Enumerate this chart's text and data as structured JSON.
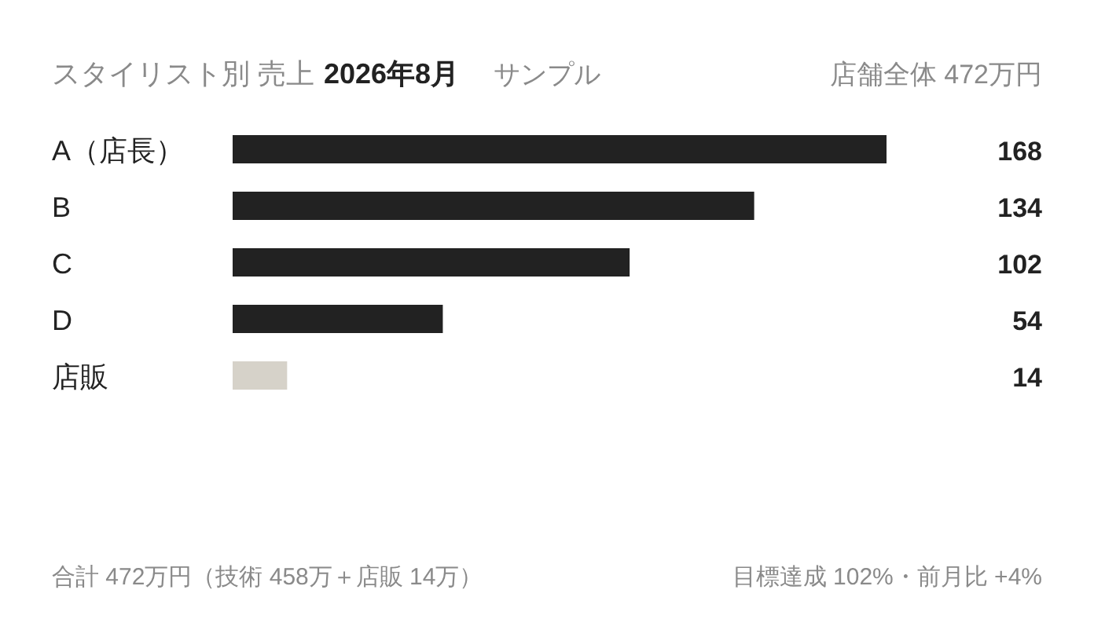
{
  "chart_data": {
    "type": "bar",
    "orientation": "horizontal",
    "title": "スタイリスト別 売上",
    "subtitle": "2026年8月",
    "categories": [
      "A（店長）",
      "B",
      "C",
      "D",
      "店販"
    ],
    "values": [
      168,
      134,
      102,
      54,
      14
    ],
    "colors": [
      "#222222",
      "#222222",
      "#222222",
      "#222222",
      "#d6d2c9"
    ],
    "data_labels": true,
    "annotations": [
      "サンプル",
      "店舗全体 472万円",
      "合計 472万円（技術 458万＋店販 14万）",
      "目標達成 102%・前月比 +4%"
    ]
  }
}
